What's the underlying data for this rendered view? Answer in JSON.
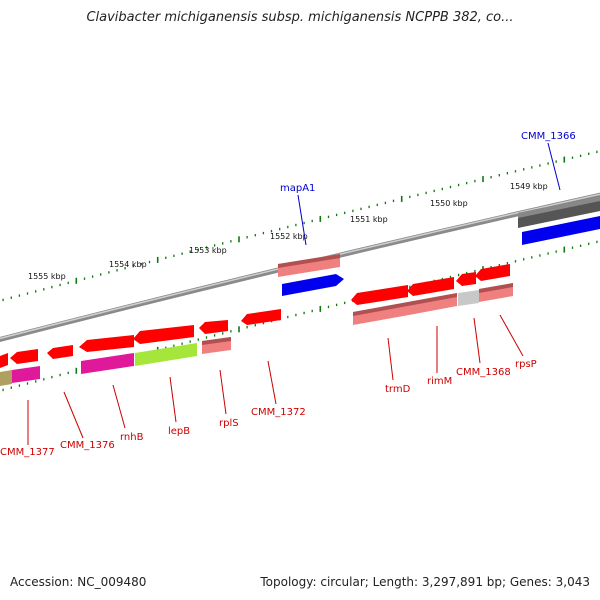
{
  "header": {
    "title": "Clavibacter michiganensis subsp. michiganensis NCPPB 382, co..."
  },
  "footer": {
    "accession": "Accession: NC_009480",
    "stats": "Topology: circular; Length: 3,297,891 bp; Genes: 3,043"
  },
  "colors": {
    "backbone": "#8a8a8a",
    "forward_cds": "#ff0000",
    "reverse_cds": "#ff0000",
    "pseudo": "#f08080",
    "gene_dark": "#505050",
    "blue_feature": "#0000ee",
    "magenta_feature": "#e0189a",
    "green_feature": "#a6e63a",
    "gray_feature": "#c8c8c8",
    "olive_feature": "#b0a060",
    "tick": "#117711",
    "label_red": "#cc0000",
    "label_blue": "#0000cc"
  },
  "axis_labels": [
    "1555 kbp",
    "1554 kbp",
    "1553 kbp",
    "1552 kbp",
    "1551 kbp",
    "1550 kbp",
    "1549 kbp"
  ],
  "gene_labels": [
    {
      "text": "CMM_1366",
      "color": "blue"
    },
    {
      "text": "mapA1",
      "color": "blue"
    },
    {
      "text": "CMM_1377",
      "color": "red"
    },
    {
      "text": "CMM_1376",
      "color": "red"
    },
    {
      "text": "rnhB",
      "color": "red"
    },
    {
      "text": "lepB",
      "color": "red"
    },
    {
      "text": "rplS",
      "color": "red"
    },
    {
      "text": "CMM_1372",
      "color": "red"
    },
    {
      "text": "trmD",
      "color": "red"
    },
    {
      "text": "rimM",
      "color": "red"
    },
    {
      "text": "CMM_1368",
      "color": "red"
    },
    {
      "text": "rpsP",
      "color": "red"
    }
  ]
}
